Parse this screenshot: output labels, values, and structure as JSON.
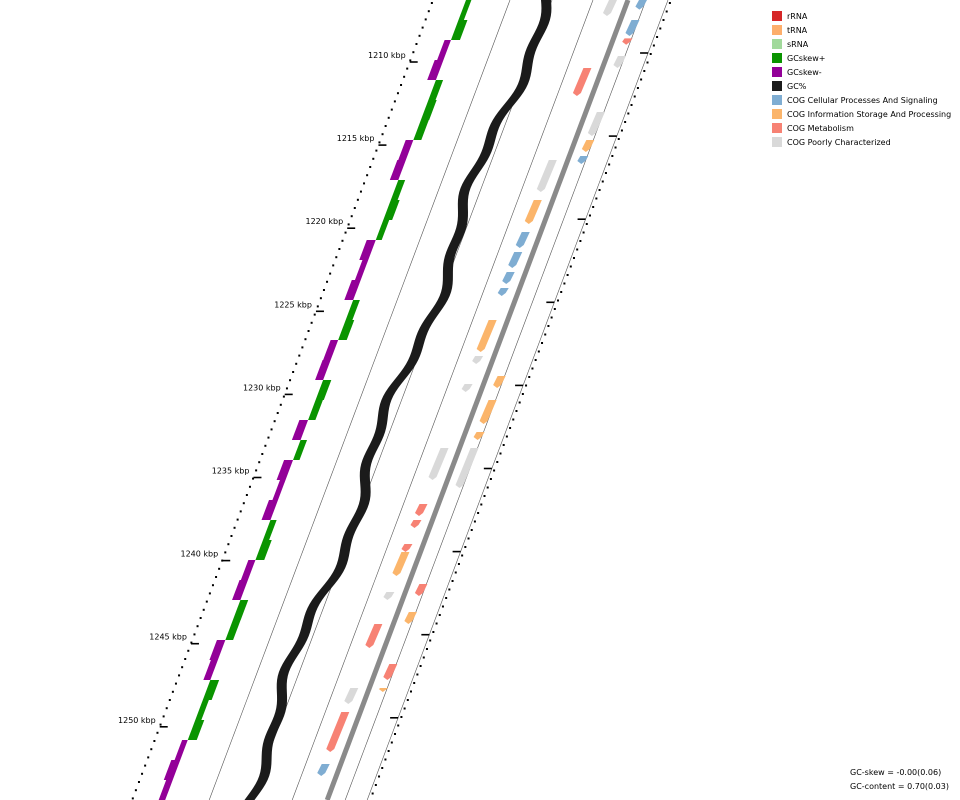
{
  "map": {
    "ticks": [
      {
        "label": "1210 kbp"
      },
      {
        "label": "1215 kbp"
      },
      {
        "label": "1220 kbp"
      },
      {
        "label": "1225 kbp"
      },
      {
        "label": "1230 kbp"
      },
      {
        "label": "1235 kbp"
      },
      {
        "label": "1240 kbp"
      },
      {
        "label": "1245 kbp"
      },
      {
        "label": "1250 kbp"
      }
    ]
  },
  "legend": [
    {
      "label": "rRNA",
      "color": "#d62728"
    },
    {
      "label": "tRNA",
      "color": "#fdae6b"
    },
    {
      "label": "sRNA",
      "color": "#a1d99b"
    },
    {
      "label": "GCskew+",
      "color": "#0a9400"
    },
    {
      "label": "GCskew-",
      "color": "#930098"
    },
    {
      "label": "GC%",
      "color": "#1b1b1b"
    },
    {
      "label": "COG Cellular Processes And Signaling",
      "color": "#7fadd2"
    },
    {
      "label": "COG Information Storage And Processing",
      "color": "#fbb56b"
    },
    {
      "label": "COG Metabolism",
      "color": "#f78274"
    },
    {
      "label": "COG Poorly Characterized",
      "color": "#d9d9d9"
    }
  ],
  "stats": {
    "gc_skew": "GC-skew = -0.00(0.06)",
    "gc_content": "GC-content = 0.70(0.03)"
  },
  "tracks": {
    "gc_skew": [
      1,
      1,
      -1,
      -1,
      1,
      1,
      1,
      -1,
      -1,
      1,
      1,
      1,
      -1,
      -1,
      -1,
      1,
      1,
      -1,
      -1,
      1,
      1,
      -1,
      1,
      -1,
      -1,
      -1,
      1,
      1,
      -1,
      -1,
      1,
      1,
      -1,
      -1,
      1,
      1,
      1,
      -1,
      -1,
      -1
    ],
    "genes_inner": [
      {
        "cog": "COG Poorly Characterized",
        "start": 0.0,
        "end": 0.02
      },
      {
        "cog": "COG Metabolism",
        "start": 0.085,
        "end": 0.12
      },
      {
        "cog": "COG Poorly Characterized",
        "start": 0.2,
        "end": 0.24
      },
      {
        "cog": "COG Information Storage And Processing",
        "start": 0.25,
        "end": 0.28
      },
      {
        "cog": "COG Cellular Processes And Signaling",
        "start": 0.29,
        "end": 0.31
      },
      {
        "cog": "COG Cellular Processes And Signaling",
        "start": 0.315,
        "end": 0.335
      },
      {
        "cog": "COG Cellular Processes And Signaling",
        "start": 0.34,
        "end": 0.355
      },
      {
        "cog": "COG Cellular Processes And Signaling",
        "start": 0.36,
        "end": 0.37
      },
      {
        "cog": "COG Information Storage And Processing",
        "start": 0.4,
        "end": 0.44
      },
      {
        "cog": "COG Poorly Characterized",
        "start": 0.445,
        "end": 0.455
      },
      {
        "cog": "COG Poorly Characterized",
        "start": 0.48,
        "end": 0.49
      },
      {
        "cog": "COG Poorly Characterized",
        "start": 0.56,
        "end": 0.6
      },
      {
        "cog": "COG Metabolism",
        "start": 0.63,
        "end": 0.645
      },
      {
        "cog": "COG Metabolism",
        "start": 0.65,
        "end": 0.66
      },
      {
        "cog": "COG Metabolism",
        "start": 0.68,
        "end": 0.69
      },
      {
        "cog": "COG Information Storage And Processing",
        "start": 0.69,
        "end": 0.72
      },
      {
        "cog": "COG Poorly Characterized",
        "start": 0.74,
        "end": 0.75
      },
      {
        "cog": "COG Metabolism",
        "start": 0.78,
        "end": 0.81
      },
      {
        "cog": "COG Poorly Characterized",
        "start": 0.86,
        "end": 0.88
      },
      {
        "cog": "COG Metabolism",
        "start": 0.89,
        "end": 0.94
      },
      {
        "cog": "COG Cellular Processes And Signaling",
        "start": 0.955,
        "end": 0.97
      }
    ],
    "genes_outer": [
      {
        "cog": "COG Cellular Processes And Signaling",
        "start": 0.0,
        "end": 0.012
      },
      {
        "cog": "COG Cellular Processes And Signaling",
        "start": 0.025,
        "end": 0.045
      },
      {
        "cog": "COG Metabolism",
        "start": 0.048,
        "end": 0.056
      },
      {
        "cog": "COG Poorly Characterized",
        "start": 0.07,
        "end": 0.085
      },
      {
        "cog": "COG Poorly Characterized",
        "start": 0.14,
        "end": 0.17
      },
      {
        "cog": "COG Information Storage And Processing",
        "start": 0.175,
        "end": 0.19
      },
      {
        "cog": "COG Cellular Processes And Signaling",
        "start": 0.195,
        "end": 0.205
      },
      {
        "cog": "COG Information Storage And Processing",
        "start": 0.47,
        "end": 0.485
      },
      {
        "cog": "COG Information Storage And Processing",
        "start": 0.5,
        "end": 0.53
      },
      {
        "cog": "COG Information Storage And Processing",
        "start": 0.54,
        "end": 0.55
      },
      {
        "cog": "COG Poorly Characterized",
        "start": 0.56,
        "end": 0.61
      },
      {
        "cog": "COG Metabolism",
        "start": 0.73,
        "end": 0.745
      },
      {
        "cog": "COG Information Storage And Processing",
        "start": 0.765,
        "end": 0.78
      },
      {
        "cog": "COG Metabolism",
        "start": 0.83,
        "end": 0.85
      },
      {
        "cog": "COG Information Storage And Processing",
        "start": 0.86,
        "end": 0.865
      }
    ]
  }
}
